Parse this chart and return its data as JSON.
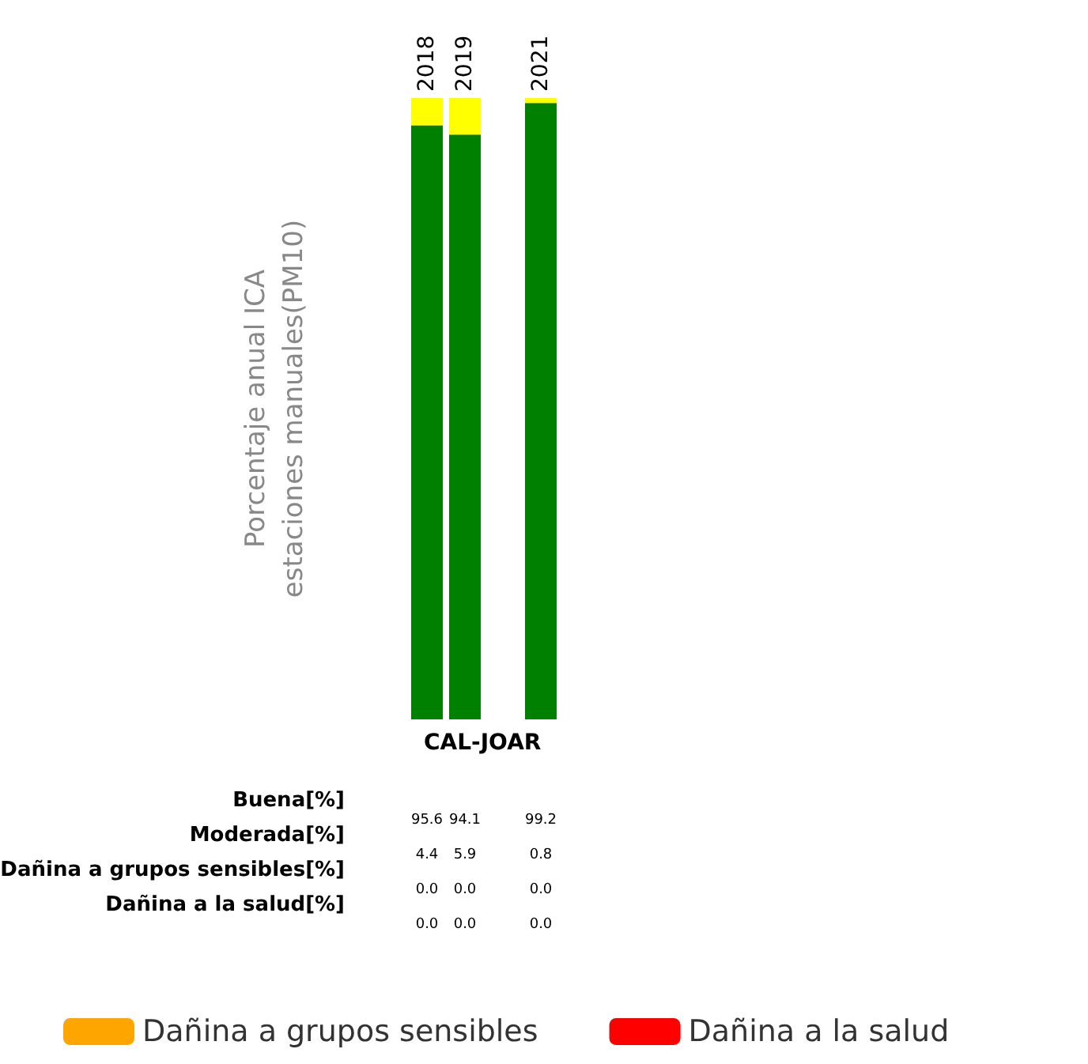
{
  "chart_data": {
    "type": "bar",
    "stacked": true,
    "categories": [
      "2018",
      "2019",
      null,
      "2021"
    ],
    "xlabel": "CAL-JOAR",
    "ylabel": "Porcentaje anual ICA\nestaciones manuales(PM10)",
    "ylim": [
      0,
      100
    ],
    "tick_labels": "x",
    "grid": false,
    "legend": "bottom",
    "annotations": [
      "Buena[%]",
      "Moderada[%]",
      "Dañina a grupos sensibles[%]",
      "Dañina a la salud[%]"
    ],
    "series": [
      {
        "color": "#008000",
        "values": [
          95.6,
          94.1,
          null,
          99.2
        ],
        "value_labels": [
          "95.6",
          "94.1",
          null,
          "99.2"
        ]
      },
      {
        "color": "#ffff00",
        "values": [
          4.4,
          5.9,
          null,
          0.8
        ],
        "value_labels": [
          "4.4",
          "5.9",
          null,
          "0.8"
        ]
      },
      {
        "name": "Dañina a grupos sensibles",
        "color": "#ffa500",
        "values": [
          0,
          0,
          null,
          0
        ],
        "value_labels": [
          "0.0",
          "0.0",
          null,
          "0.0"
        ]
      },
      {
        "name": "Dañina a la salud",
        "color": "#ff0000",
        "values": [
          0,
          0,
          null,
          0
        ],
        "value_labels": [
          "0.0",
          "0.0",
          null,
          "0.0"
        ]
      }
    ]
  }
}
